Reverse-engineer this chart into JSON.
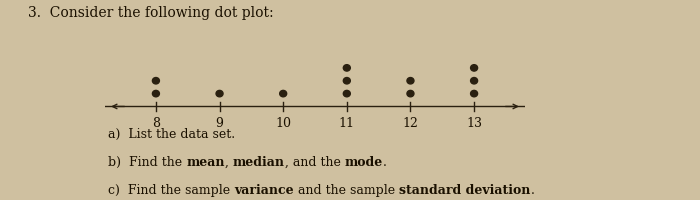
{
  "title": "3.  Consider the following dot plot:",
  "dot_counts": {
    "8": 2,
    "9": 1,
    "10": 1,
    "11": 3,
    "12": 2,
    "13": 3
  },
  "x_ticks": [
    8,
    9,
    10,
    11,
    12,
    13
  ],
  "dot_color": "#2a2010",
  "line_color": "#2a2010",
  "bg_color": "#cfc0a0",
  "text_color": "#1a1000",
  "title_text": "3.  Consider the following dot plot:",
  "label_a": "a)  List the data set.",
  "label_b_parts": [
    [
      "b)  Find the ",
      false
    ],
    [
      "mean",
      true
    ],
    [
      ", ",
      false
    ],
    [
      "median",
      true
    ],
    [
      ", and the ",
      false
    ],
    [
      "mode",
      true
    ],
    [
      ".",
      false
    ]
  ],
  "label_c_parts": [
    [
      "c)  Find the sample ",
      false
    ],
    [
      "variance",
      true
    ],
    [
      " and the sample ",
      false
    ],
    [
      "standard deviation",
      true
    ],
    [
      ".",
      false
    ]
  ],
  "font_size_title": 10,
  "font_size_labels": 9,
  "font_size_ticks": 9
}
